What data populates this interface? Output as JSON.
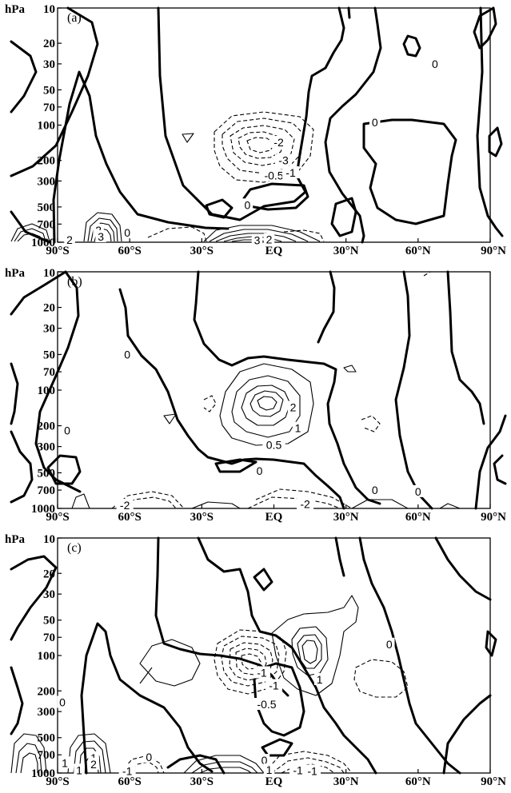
{
  "chart_data": [
    {
      "type": "contour",
      "panel_label": "(a)",
      "y_unit": "hPa",
      "y_scale": "log",
      "y_ticks": [
        10,
        20,
        30,
        50,
        70,
        100,
        200,
        300,
        500,
        700,
        1000
      ],
      "x_ticks": [
        "90°S",
        "60°S",
        "30°S",
        "EQ",
        "30°N",
        "60°N",
        "90°N"
      ],
      "x_range": [
        -90,
        90
      ],
      "contour_labels": [
        {
          "text": "0",
          "lat": 67,
          "p": 30
        },
        {
          "text": "0",
          "lat": 42,
          "p": 95
        },
        {
          "text": "0",
          "lat": -11,
          "p": 480
        },
        {
          "text": "0",
          "lat": -61,
          "p": 830
        },
        {
          "text": "-2",
          "lat": 2,
          "p": 140
        },
        {
          "text": "-3",
          "lat": 4,
          "p": 200
        },
        {
          "text": "-0.5",
          "lat": 0,
          "p": 270
        },
        {
          "text": "-1",
          "lat": 7,
          "p": 255
        },
        {
          "text": "2",
          "lat": -85,
          "p": 955
        },
        {
          "text": "2",
          "lat": -73,
          "p": 790
        },
        {
          "text": "3",
          "lat": -72,
          "p": 895
        },
        {
          "text": "3",
          "lat": -7,
          "p": 960
        },
        {
          "text": "2",
          "lat": -2,
          "p": 950
        }
      ]
    },
    {
      "type": "contour",
      "panel_label": "(b)",
      "y_unit": "hPa",
      "y_scale": "log",
      "y_ticks": [
        10,
        20,
        30,
        50,
        70,
        100,
        200,
        300,
        500,
        700,
        1000
      ],
      "x_ticks": [
        "90°S",
        "60°S",
        "30°S",
        "EQ",
        "30°N",
        "60°N",
        "90°N"
      ],
      "x_range": [
        -90,
        90
      ],
      "contour_labels": [
        {
          "text": "0",
          "lat": -61,
          "p": 50
        },
        {
          "text": "0",
          "lat": -86,
          "p": 220
        },
        {
          "text": "0",
          "lat": -6,
          "p": 480
        },
        {
          "text": "0",
          "lat": 42,
          "p": 700
        },
        {
          "text": "0",
          "lat": 60,
          "p": 720
        },
        {
          "text": "2",
          "lat": 8,
          "p": 140
        },
        {
          "text": "1",
          "lat": 10,
          "p": 210
        },
        {
          "text": "0.5",
          "lat": 0,
          "p": 290
        },
        {
          "text": "-2",
          "lat": -62,
          "p": 940
        },
        {
          "text": "-2",
          "lat": 13,
          "p": 920
        }
      ]
    },
    {
      "type": "contour",
      "panel_label": "(c)",
      "y_unit": "hPa",
      "y_scale": "log",
      "y_ticks": [
        10,
        20,
        30,
        50,
        70,
        100,
        200,
        300,
        500,
        700,
        1000
      ],
      "x_ticks": [
        "90°S",
        "60°S",
        "30°S",
        "EQ",
        "30°N",
        "60°N",
        "90°N"
      ],
      "x_range": [
        -90,
        90
      ],
      "contour_labels": [
        {
          "text": "0",
          "lat": 48,
          "p": 80
        },
        {
          "text": "0",
          "lat": -88,
          "p": 250
        },
        {
          "text": "0",
          "lat": -52,
          "p": 730
        },
        {
          "text": "0",
          "lat": -4,
          "p": 780
        },
        {
          "text": "-1",
          "lat": -5,
          "p": 140
        },
        {
          "text": "-1",
          "lat": 0,
          "p": 180
        },
        {
          "text": "-0.5",
          "lat": -3,
          "p": 260
        },
        {
          "text": "1",
          "lat": 19,
          "p": 160
        },
        {
          "text": "1",
          "lat": -87,
          "p": 820
        },
        {
          "text": "1",
          "lat": -75,
          "p": 740
        },
        {
          "text": "2",
          "lat": -75,
          "p": 840
        },
        {
          "text": "1",
          "lat": -81,
          "p": 945
        },
        {
          "text": "1",
          "lat": -2,
          "p": 940
        },
        {
          "text": "-1",
          "lat": -61,
          "p": 960
        },
        {
          "text": "-1",
          "lat": 10,
          "p": 950
        },
        {
          "text": "-1",
          "lat": 16,
          "p": 960
        }
      ]
    }
  ]
}
